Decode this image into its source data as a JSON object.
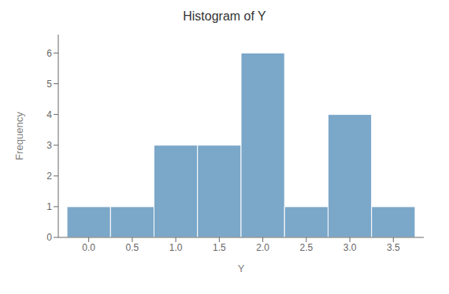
{
  "chart_data": {
    "type": "histogram",
    "title": "Histogram of Y",
    "xlabel": "Y",
    "ylabel": "Frequency",
    "bins": [
      -0.25,
      0.25,
      0.75,
      1.25,
      1.75,
      2.25,
      2.75,
      3.25,
      3.75
    ],
    "values": [
      1,
      1,
      3,
      3,
      6,
      1,
      4,
      1
    ],
    "color": "#7ba7c9",
    "xlim": [
      -0.35,
      3.85
    ],
    "ylim": [
      0,
      6.6
    ],
    "xticks": [
      {
        "value": 0.0,
        "label": "0.0"
      },
      0.5,
      {
        "value": 1.0,
        "label": "1.0"
      },
      1.5,
      {
        "value": 2.0,
        "label": "2.0"
      },
      2.5,
      {
        "value": 3.0,
        "label": "3.0"
      },
      3.5
    ],
    "yticks": [
      0,
      1,
      2,
      3,
      4,
      5,
      6
    ],
    "grid": false
  }
}
